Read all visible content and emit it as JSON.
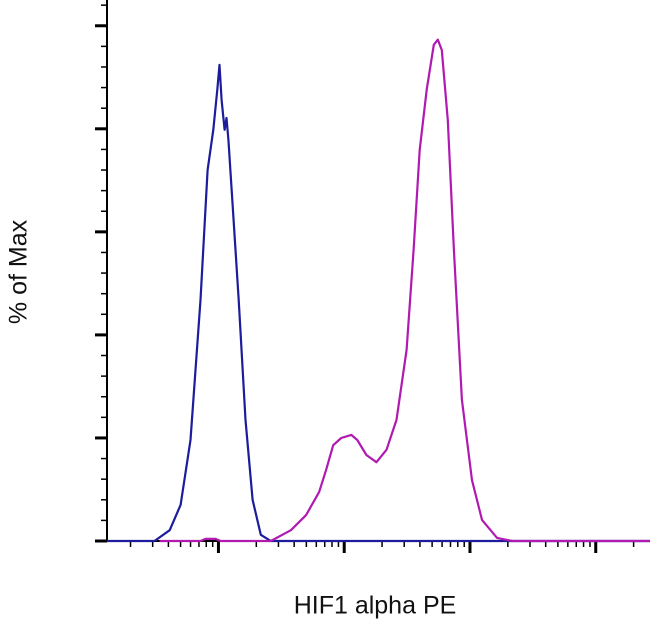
{
  "chart_data": {
    "type": "line",
    "xlabel": "HIF1 alpha PE",
    "ylabel": "% of Max",
    "xscale": "log",
    "xlim": [
      13,
      270000
    ],
    "xticks": [
      100,
      1000,
      10000,
      100000
    ],
    "xminor": [
      20,
      30,
      40,
      50,
      60,
      70,
      80,
      90,
      200,
      300,
      400,
      500,
      600,
      700,
      800,
      900,
      2000,
      3000,
      4000,
      5000,
      6000,
      7000,
      8000,
      9000,
      20000,
      30000,
      40000,
      50000,
      60000,
      70000,
      80000,
      90000,
      200000
    ],
    "ylim": [
      0,
      105
    ],
    "yticks": [
      0,
      20,
      40,
      60,
      80,
      100
    ],
    "yminor": [
      4,
      8,
      12,
      16,
      24,
      28,
      32,
      36,
      44,
      48,
      52,
      56,
      64,
      68,
      72,
      76,
      84,
      88,
      92,
      96,
      104
    ],
    "series": [
      {
        "color": "#1c1c9c",
        "x": [
          13,
          31,
          41,
          50,
          60,
          72,
          82,
          91,
          98,
          102,
          106,
          112,
          116,
          120,
          129,
          145,
          164,
          187,
          217,
          261,
          270000
        ],
        "values": [
          0,
          0,
          2.1,
          7,
          19.6,
          46.8,
          72,
          79.8,
          87.6,
          92.4,
          85.6,
          79.8,
          82.1,
          77.9,
          66.2,
          46.8,
          23.5,
          8,
          1.2,
          0,
          0
        ]
      },
      {
        "color": "#b01ab0",
        "x": [
          34,
          72,
          79,
          95,
          104,
          261,
          377,
          497,
          631,
          718,
          817,
          946,
          1138,
          1271,
          1500,
          1803,
          2168,
          2606,
          3133,
          3565,
          3981,
          4529,
          5152,
          5546,
          5970,
          6668,
          7447,
          8630,
          10380,
          12470,
          16440,
          21680,
          270000
        ],
        "values": [
          0,
          0,
          0.4,
          0.4,
          0,
          0,
          2.1,
          5,
          9.5,
          13.8,
          18.6,
          20,
          20.6,
          19.6,
          16.7,
          15.3,
          17.7,
          23.5,
          37.1,
          56.5,
          75.9,
          87.6,
          96.3,
          97.3,
          95.3,
          81.7,
          56.5,
          27.4,
          11.8,
          4.1,
          0.6,
          0,
          0
        ]
      }
    ]
  }
}
